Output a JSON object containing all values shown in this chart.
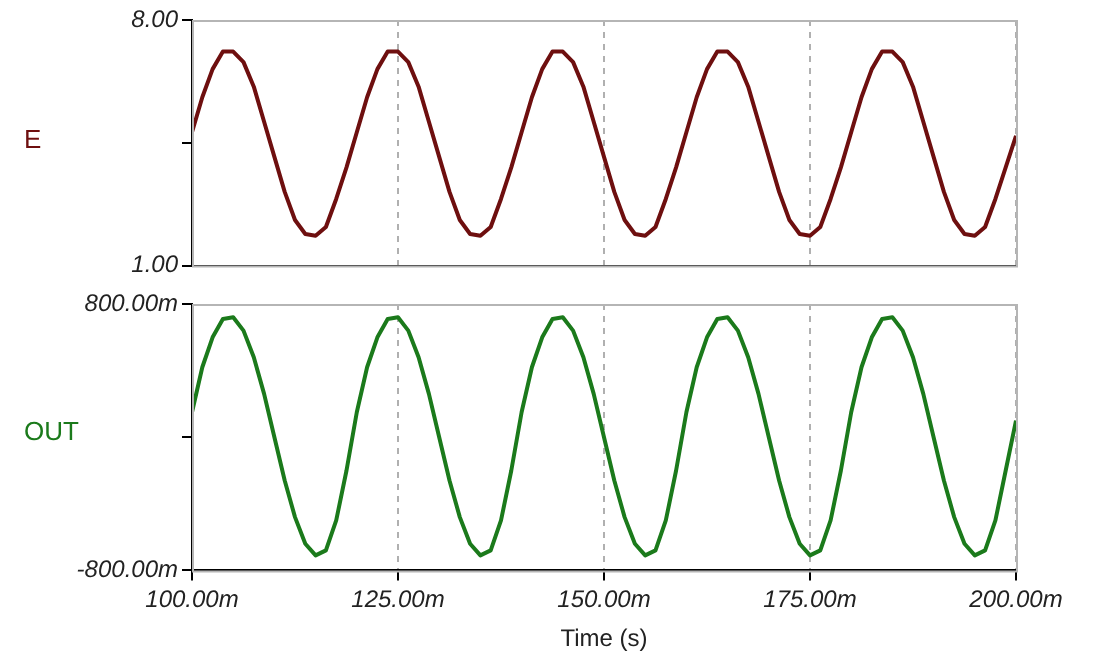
{
  "chart_data": [
    {
      "type": "line",
      "ylabel": "E",
      "xlim": [
        100,
        200
      ],
      "xticks": [
        {
          "value": 100,
          "label": null
        },
        {
          "value": 125,
          "label": null
        },
        {
          "value": 150,
          "label": null
        },
        {
          "value": 175,
          "label": null
        },
        {
          "value": 200,
          "label": null
        }
      ],
      "ylim": [
        1,
        8
      ],
      "yticks": [
        {
          "value": 1,
          "label": "1.00"
        },
        {
          "value": 4.5,
          "label": null
        },
        {
          "value": 8,
          "label": "8.00"
        }
      ],
      "grid": "x",
      "tick_labels": "y",
      "x": [
        100,
        101.25,
        102.5,
        103.75,
        105,
        106.25,
        107.5,
        108.75,
        110,
        111.25,
        112.5,
        113.75,
        115,
        116.25,
        117.5,
        118.75,
        120,
        121.25,
        122.5,
        123.75,
        125,
        126.25,
        127.5,
        128.75,
        130,
        131.25,
        132.5,
        133.75,
        135,
        136.25,
        137.5,
        138.75,
        140,
        141.25,
        142.5,
        143.75,
        145,
        146.25,
        147.5,
        148.75,
        150,
        151.25,
        152.5,
        153.75,
        155,
        156.25,
        157.5,
        158.75,
        160,
        161.25,
        162.5,
        163.75,
        165,
        166.25,
        167.5,
        168.75,
        170,
        171.25,
        172.5,
        173.75,
        175,
        176.25,
        177.5,
        178.75,
        180,
        181.25,
        182.5,
        183.75,
        185,
        186.25,
        187.5,
        188.75,
        190,
        191.25,
        192.5,
        193.75,
        195,
        196.25,
        197.5,
        198.75,
        200
      ],
      "series": [
        {
          "color": "#6e0f0f",
          "values": [
            4.8,
            5.8,
            6.6,
            7.1,
            7.1,
            6.8,
            6.1,
            5.1,
            4.1,
            3.1,
            2.3,
            1.9,
            1.85,
            2.1,
            2.9,
            3.8,
            4.8,
            5.8,
            6.6,
            7.1,
            7.1,
            6.8,
            6.1,
            5.1,
            4.1,
            3.1,
            2.3,
            1.9,
            1.85,
            2.1,
            2.9,
            3.8,
            4.8,
            5.8,
            6.6,
            7.1,
            7.1,
            6.8,
            6.1,
            5.1,
            4.1,
            3.1,
            2.3,
            1.9,
            1.85,
            2.1,
            2.9,
            3.8,
            4.8,
            5.8,
            6.6,
            7.1,
            7.1,
            6.8,
            6.1,
            5.1,
            4.1,
            3.1,
            2.3,
            1.9,
            1.85,
            2.1,
            2.9,
            3.8,
            4.8,
            5.8,
            6.6,
            7.1,
            7.1,
            6.8,
            6.1,
            5.1,
            4.1,
            3.1,
            2.3,
            1.9,
            1.85,
            2.1,
            2.9,
            3.8,
            4.7
          ]
        }
      ]
    },
    {
      "type": "line",
      "ylabel": "OUT",
      "xlabel": "Time (s)",
      "xlim": [
        100,
        200
      ],
      "xticks": [
        {
          "value": 100,
          "label": "100.00m"
        },
        {
          "value": 125,
          "label": "125.00m"
        },
        {
          "value": 150,
          "label": "150.00m"
        },
        {
          "value": 175,
          "label": "175.00m"
        },
        {
          "value": 200,
          "label": "200.00m"
        }
      ],
      "ylim": [
        -800,
        800
      ],
      "yticks": [
        {
          "value": -800,
          "label": "-800.00m"
        },
        {
          "value": 0,
          "label": null
        },
        {
          "value": 800,
          "label": "800.00m"
        }
      ],
      "grid": "x",
      "x": [
        100,
        101.25,
        102.5,
        103.75,
        105,
        106.25,
        107.5,
        108.75,
        110,
        111.25,
        112.5,
        113.75,
        115,
        116.25,
        117.5,
        118.75,
        120,
        121.25,
        122.5,
        123.75,
        125,
        126.25,
        127.5,
        128.75,
        130,
        131.25,
        132.5,
        133.75,
        135,
        136.25,
        137.5,
        138.75,
        140,
        141.25,
        142.5,
        143.75,
        145,
        146.25,
        147.5,
        148.75,
        150,
        151.25,
        152.5,
        153.75,
        155,
        156.25,
        157.5,
        158.75,
        160,
        161.25,
        162.5,
        163.75,
        165,
        166.25,
        167.5,
        168.75,
        170,
        171.25,
        172.5,
        173.75,
        175,
        176.25,
        177.5,
        178.75,
        180,
        181.25,
        182.5,
        183.75,
        185,
        186.25,
        187.5,
        188.75,
        190,
        191.25,
        192.5,
        193.75,
        195,
        196.25,
        197.5,
        198.75,
        200
      ],
      "series": [
        {
          "color": "#1b7a1b",
          "values": [
            150,
            420,
            600,
            710,
            720,
            640,
            480,
            260,
            0,
            -260,
            -480,
            -640,
            -710,
            -680,
            -500,
            -200,
            150,
            420,
            600,
            710,
            720,
            640,
            480,
            260,
            0,
            -260,
            -480,
            -640,
            -710,
            -680,
            -500,
            -200,
            150,
            420,
            600,
            710,
            720,
            640,
            480,
            260,
            0,
            -260,
            -480,
            -640,
            -710,
            -680,
            -500,
            -200,
            150,
            420,
            600,
            710,
            720,
            640,
            480,
            260,
            0,
            -260,
            -480,
            -640,
            -710,
            -680,
            -500,
            -200,
            150,
            420,
            600,
            710,
            720,
            640,
            480,
            260,
            0,
            -260,
            -480,
            -640,
            -710,
            -680,
            -500,
            -200,
            100
          ]
        }
      ]
    }
  ]
}
